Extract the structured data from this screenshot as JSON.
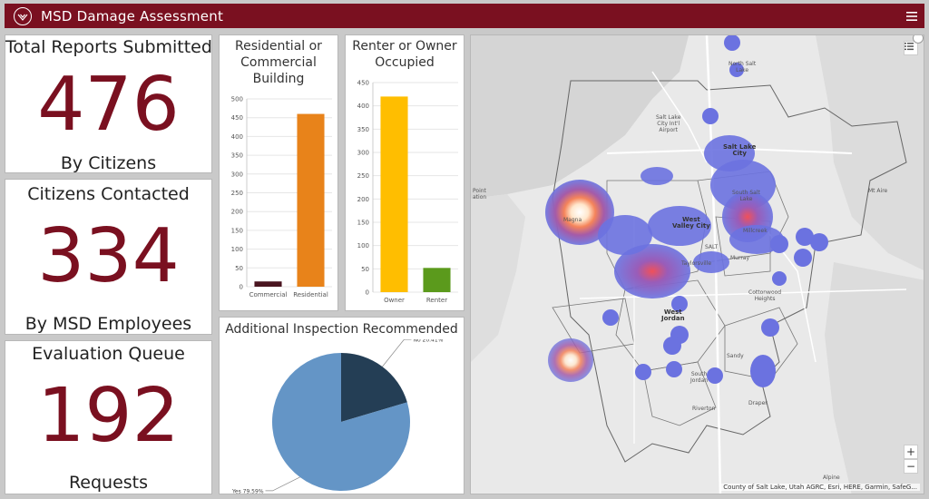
{
  "app": {
    "title": "MSD Damage Assessment"
  },
  "indicators": [
    {
      "title": "Total Reports Submitted",
      "value": "476",
      "subtitle": "By Citizens"
    },
    {
      "title": "Citizens Contacted",
      "value": "334",
      "subtitle": "By MSD Employees"
    },
    {
      "title": "Evaluation Queue",
      "value": "192",
      "subtitle": "Requests"
    }
  ],
  "chart_data": [
    {
      "type": "bar",
      "title_lines": [
        "Residential or",
        "Commercial",
        "Building"
      ],
      "categories": [
        "Commercial",
        "Residential"
      ],
      "values": [
        14,
        460
      ],
      "colors": [
        "#4a1520",
        "#e8831a"
      ],
      "ylim": [
        0,
        500
      ],
      "yticks": [
        "0",
        "50",
        "100",
        "150",
        "200",
        "250",
        "300",
        "350",
        "400",
        "450",
        "500"
      ]
    },
    {
      "type": "bar",
      "title_lines": [
        "Renter or Owner",
        "Occupied"
      ],
      "categories": [
        "Owner",
        "Renter"
      ],
      "values": [
        420,
        52
      ],
      "colors": [
        "#ffbe00",
        "#5b9a1c"
      ],
      "ylim": [
        0,
        450
      ],
      "yticks": [
        "0",
        "50",
        "100",
        "150",
        "200",
        "250",
        "300",
        "350",
        "400",
        "450"
      ]
    },
    {
      "type": "pie",
      "title": "Additional Inspection Recommended",
      "slices": [
        {
          "label": "No 20.41%",
          "value": 20.41,
          "color": "#243e55"
        },
        {
          "label": "Yes 79.59%",
          "value": 79.59,
          "color": "#6495c6"
        }
      ]
    }
  ],
  "map": {
    "labels": [
      {
        "text": "North Salt\nLake",
        "bold": false
      },
      {
        "text": "Salt Lake\nCity Int'l\nAirport",
        "bold": false
      },
      {
        "text": "Salt Lake\nCity",
        "bold": true
      },
      {
        "text": "South Salt\nLake",
        "bold": false
      },
      {
        "text": "Point\nation",
        "bold": false
      },
      {
        "text": "Mt Aire",
        "bold": false
      },
      {
        "text": "West\nValley City",
        "bold": true
      },
      {
        "text": "Millcreek",
        "bold": false
      },
      {
        "text": "Magna",
        "bold": false
      },
      {
        "text": "SALT",
        "bold": false
      },
      {
        "text": "Taylorsville",
        "bold": false
      },
      {
        "text": "Murray",
        "bold": false
      },
      {
        "text": "Cottonwood\nHeights",
        "bold": false
      },
      {
        "text": "West\nJordan",
        "bold": true
      },
      {
        "text": "Sandy",
        "bold": false
      },
      {
        "text": "South\nJordan",
        "bold": false
      },
      {
        "text": "Draper",
        "bold": false
      },
      {
        "text": "Riverton",
        "bold": false
      },
      {
        "text": "Alpine",
        "bold": false
      }
    ],
    "zoom_in": "+",
    "zoom_out": "−",
    "attribution": "County of Salt Lake, Utah AGRC, Esri, HERE, Garmin, SafeG..."
  },
  "icons": {
    "logo": "msd-logo-icon",
    "menu": "hamburger-menu-icon",
    "legend": "legend-list-icon",
    "fullscreen": "expand-icon"
  }
}
